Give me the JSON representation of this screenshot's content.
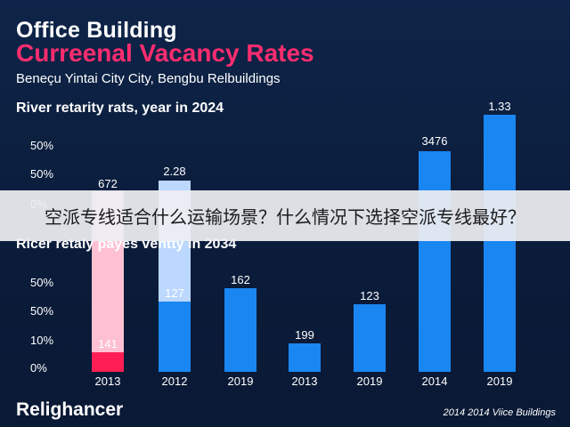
{
  "header": {
    "title_line1": "Office Building",
    "title_line2": "Curreenal Vacancy Rates",
    "subtitle": "Beneçu Yintai City City, Bengbu Relbuildings"
  },
  "chart_data": [
    {
      "type": "bar",
      "title": "River retarity rats, year in 2024",
      "y_tick_labels": [
        "50%",
        "50%",
        "0%"
      ],
      "bars": [
        {
          "label": "672",
          "value": 672,
          "color": "#ffc0d2",
          "partially_hidden": true
        },
        {
          "label": "2.28",
          "value": 2.28,
          "color": "#bcd8ff",
          "partially_hidden": true
        },
        {
          "label": "3476",
          "value": 3476,
          "color": "#1a86f2"
        },
        {
          "label": "1.33",
          "value": 1.33,
          "color": "#1a86f2"
        }
      ]
    },
    {
      "type": "bar",
      "title": "Ricer retaly payes ventty in 2034",
      "y_tick_labels": [
        "50%",
        "50%",
        "10%",
        "0%"
      ],
      "categories": [
        "2013",
        "2012",
        "2019",
        "2013",
        "2019",
        "2014",
        "2019"
      ],
      "values": [
        141,
        127,
        162,
        199,
        123,
        null,
        null
      ],
      "bar_colors": [
        "#ff1f55",
        "#1a86f2",
        "#1a86f2",
        "#1a86f2",
        "#1a86f2",
        "#1a86f2",
        "#1a86f2"
      ]
    }
  ],
  "banner": {
    "text": "空派专线适合什么运输场景？什么情况下选择空派专线最好？"
  },
  "footer": {
    "brand": "Relighancer",
    "note": "2014 2014 Viice Buildings"
  }
}
